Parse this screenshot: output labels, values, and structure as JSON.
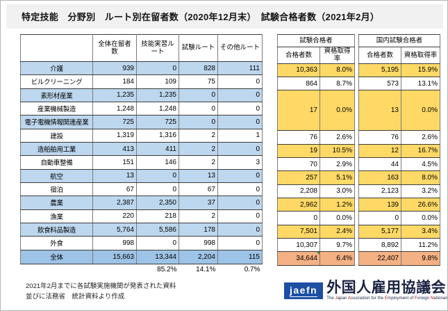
{
  "title": "特定技能　分野別　ルート別在留者数（2020年12月末）　試験合格者数（2021年2月）",
  "resident_table": {
    "columns": [
      "全体在留者数",
      "技能実習ルート",
      "試験ルート",
      "その他ルート"
    ],
    "route_share": [
      "85.2%",
      "14.1%",
      "0.7%"
    ]
  },
  "exam_table": {
    "groups": [
      "試験合格者",
      "国内試験合格者"
    ],
    "columns": [
      "合格者数",
      "資格取得率",
      "合格者数",
      "資格取得率"
    ],
    "merged_manufacturing": {
      "values": [
        "17",
        "0.0%",
        "13",
        "0.0%"
      ]
    }
  },
  "industries": [
    {
      "name": "介護",
      "residents": [
        "939",
        "0",
        "828",
        "111"
      ],
      "exam": [
        "10,363",
        "8.0%",
        "5,195",
        "15.9%"
      ]
    },
    {
      "name": "ビルクリーニング",
      "residents": [
        "184",
        "109",
        "75",
        "0"
      ],
      "exam": [
        "864",
        "8.7%",
        "573",
        "13.1%"
      ]
    },
    {
      "name": "素形材産業",
      "residents": [
        "1,235",
        "1,235",
        "0",
        "0"
      ],
      "exam_group": "manufacturing"
    },
    {
      "name": "産業機械製造",
      "residents": [
        "1,248",
        "1,248",
        "0",
        "0"
      ],
      "exam_group": "manufacturing"
    },
    {
      "name": "電子電機情報関連産業",
      "residents": [
        "725",
        "725",
        "0",
        "0"
      ],
      "exam_group": "manufacturing"
    },
    {
      "name": "建設",
      "residents": [
        "1,319",
        "1,316",
        "2",
        "1"
      ],
      "exam": [
        "76",
        "2.6%",
        "76",
        "2.6%"
      ]
    },
    {
      "name": "造船舶用工業",
      "residents": [
        "413",
        "411",
        "2",
        "0"
      ],
      "exam": [
        "19",
        "10.5%",
        "12",
        "16.7%"
      ]
    },
    {
      "name": "自動車整備",
      "residents": [
        "151",
        "146",
        "2",
        "3"
      ],
      "exam": [
        "70",
        "2.9%",
        "44",
        "4.5%"
      ]
    },
    {
      "name": "航空",
      "residents": [
        "13",
        "0",
        "13",
        "0"
      ],
      "exam": [
        "257",
        "5.1%",
        "163",
        "8.0%"
      ]
    },
    {
      "name": "宿泊",
      "residents": [
        "67",
        "0",
        "67",
        "0"
      ],
      "exam": [
        "2,208",
        "3.0%",
        "2,123",
        "3.2%"
      ]
    },
    {
      "name": "農業",
      "residents": [
        "2,387",
        "2,350",
        "37",
        "0"
      ],
      "exam": [
        "2,962",
        "1.2%",
        "139",
        "26.6%"
      ]
    },
    {
      "name": "漁業",
      "residents": [
        "220",
        "218",
        "2",
        "0"
      ],
      "exam": [
        "0",
        "0.0%",
        "0",
        "0.0%"
      ]
    },
    {
      "name": "飲食料品製造",
      "residents": [
        "5,764",
        "5,586",
        "178",
        "0"
      ],
      "exam": [
        "7,501",
        "2.4%",
        "5,177",
        "3.4%"
      ]
    },
    {
      "name": "外食",
      "residents": [
        "998",
        "0",
        "998",
        "0"
      ],
      "exam": [
        "10,307",
        "9.7%",
        "8,892",
        "11.2%"
      ]
    }
  ],
  "totals": {
    "label": "全体",
    "residents": [
      "15,663",
      "13,344",
      "2,204",
      "115"
    ],
    "exam": [
      "34,644",
      "6.4%",
      "22,407",
      "9.8%"
    ]
  },
  "footnote": {
    "line1": "2021年2月までに各試験実施機関が発表された資料",
    "line2": "並びに法務省　統計資料より作成"
  },
  "logo": {
    "abbr": "jaefn",
    "name": "外国人雇用協議会",
    "tagline_words": [
      {
        "t": "The",
        "r": false
      },
      {
        "t": "Japan",
        "r": true
      },
      {
        "t": "Association",
        "r": true
      },
      {
        "t": "for",
        "r": false
      },
      {
        "t": "the",
        "r": false
      },
      {
        "t": "Employment",
        "r": true
      },
      {
        "t": "of",
        "r": false
      },
      {
        "t": "Foreign",
        "r": true
      },
      {
        "t": "Nationals",
        "r": true
      }
    ]
  },
  "colors": {
    "stripe_blue": "#BDD7EE",
    "total_blue": "#9DC3E6",
    "stripe_yellow": "#FFD966",
    "total_orange": "#F4B183",
    "title_band": "#F1F1F1",
    "logo_blue": "#1D4FA3",
    "logo_navy": "#1A2240",
    "logo_red": "#C00000"
  }
}
